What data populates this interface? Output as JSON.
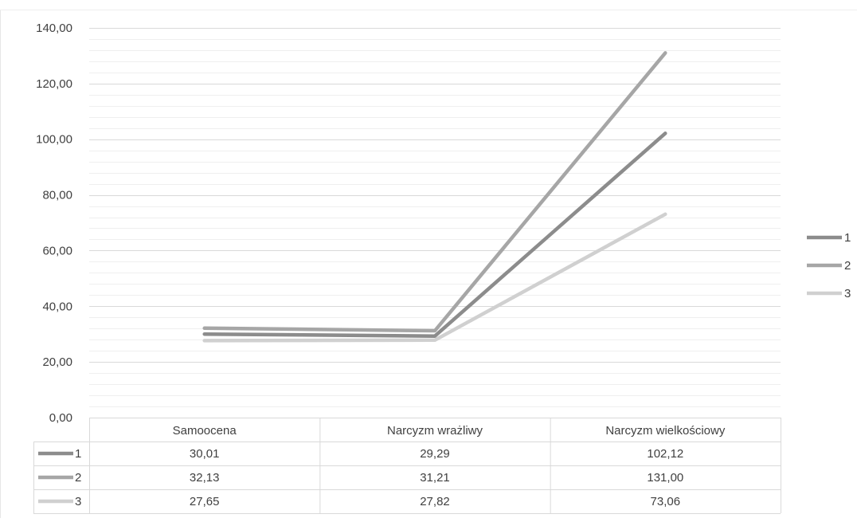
{
  "chart_data": {
    "type": "line",
    "categories": [
      "Samoocena",
      "Narcyzm wrażliwy",
      "Narcyzm wielkościowy"
    ],
    "series": [
      {
        "name": "1",
        "values": [
          30.01,
          29.29,
          102.12
        ],
        "labels": [
          "30,01",
          "29,29",
          "102,12"
        ],
        "color": "#8c8c8c"
      },
      {
        "name": "2",
        "values": [
          32.13,
          31.21,
          131.0
        ],
        "labels": [
          "32,13",
          "31,21",
          "131,00"
        ],
        "color": "#a6a6a6"
      },
      {
        "name": "3",
        "values": [
          27.65,
          27.82,
          73.06
        ],
        "labels": [
          "27,65",
          "27,82",
          "73,06"
        ],
        "color": "#d0d0d0"
      }
    ],
    "y_ticks": [
      "0,00",
      "20,00",
      "40,00",
      "60,00",
      "80,00",
      "100,00",
      "120,00",
      "140,00"
    ],
    "ylim": [
      0,
      140
    ],
    "ytick_step": 20,
    "minor_grid_step": 4,
    "grid": true,
    "legend": "right",
    "data_table": true,
    "colors": {
      "major_grid": "#d9d9d9",
      "minor_grid": "#efefef",
      "table_border": "#d9d9d9",
      "text": "#404040"
    }
  }
}
